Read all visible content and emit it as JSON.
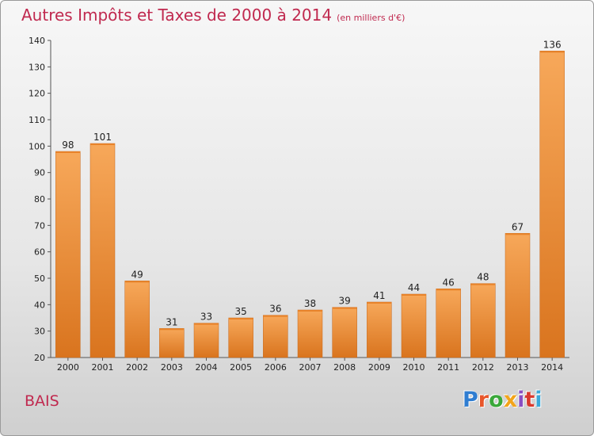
{
  "header": {
    "title": "Autres Impôts et Taxes de 2000 à 2014",
    "unit": "(en milliers d'€)"
  },
  "footer": {
    "place": "BAIS",
    "brand": "Proxiti"
  },
  "colors": {
    "title": "#c0294f",
    "bar_light": "#f7a85a",
    "bar_dark": "#d9741e",
    "brand": [
      "#2f7dd1",
      "#e8562a",
      "#3aa83a",
      "#f2a41a",
      "#8a4fc2",
      "#d83a2e",
      "#3aa8d8"
    ]
  },
  "chart_data": {
    "type": "bar",
    "title": "Autres Impôts et Taxes de 2000 à 2014",
    "subtitle": "(en milliers d'€)",
    "categories": [
      "2000",
      "2001",
      "2002",
      "2003",
      "2004",
      "2005",
      "2006",
      "2007",
      "2008",
      "2009",
      "2010",
      "2011",
      "2012",
      "2013",
      "2014"
    ],
    "values": [
      98,
      101,
      49,
      31,
      33,
      35,
      36,
      38,
      39,
      41,
      44,
      46,
      48,
      67,
      136
    ],
    "ylim": [
      20,
      140
    ],
    "yticks": [
      20,
      30,
      40,
      50,
      60,
      70,
      80,
      90,
      100,
      110,
      120,
      130,
      140
    ],
    "xlabel": "",
    "ylabel": "",
    "grid": false,
    "data_labels": true
  }
}
